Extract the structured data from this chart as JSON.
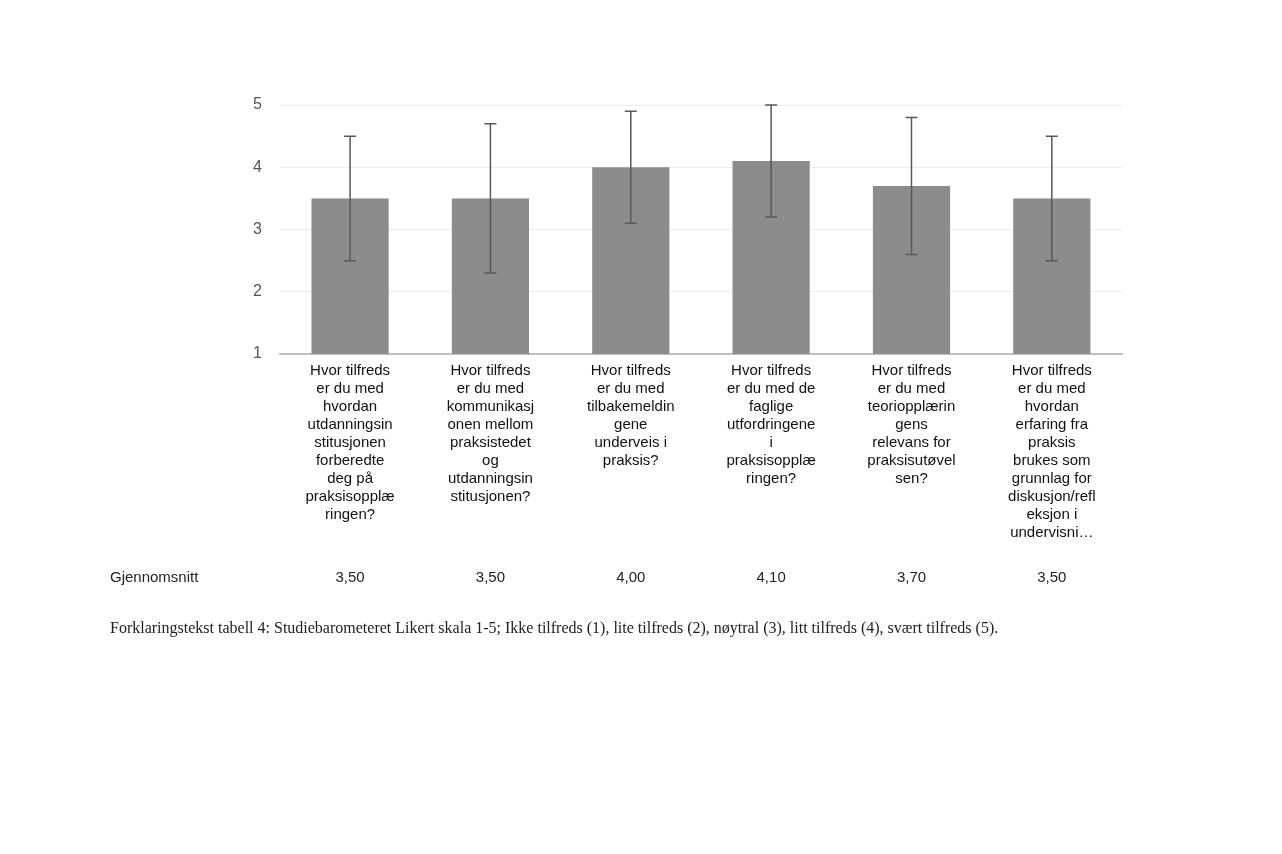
{
  "chart_data": {
    "type": "bar",
    "categories": [
      "Hvor tilfreds er du med hvordan utdanningsinstitusjonen forberedte deg på praksisopplæringen?",
      "Hvor tilfreds er du med kommunikasjonen mellom praksistedet og utdanningsinstitusjonen?",
      "Hvor tilfreds er du med tilbakemeldingene underveis i praksis?",
      "Hvor tilfreds er du med de faglige utfordringene i praksisopplæringen?",
      "Hvor tilfreds er du med teoriopplæringens relevans for praksisutøvelsen?",
      "Hvor tilfreds er du med hvordan erfaring fra praksis brukes som grunnlag for diskusjon/refleksjon i undervisni…"
    ],
    "values": [
      3.5,
      3.5,
      4.0,
      4.1,
      3.7,
      3.5
    ],
    "errors": [
      1.0,
      1.2,
      0.9,
      0.9,
      1.1,
      1.0
    ],
    "value_labels": [
      "3,50",
      "3,50",
      "4,00",
      "4,10",
      "3,70",
      "3,50"
    ],
    "color": "#8c8c8c",
    "ylim": [
      1,
      5
    ],
    "yticks": [
      1,
      2,
      3,
      4,
      5
    ],
    "grid": "y",
    "annotations": [
      "Gjennomsnitt",
      "Forklaringstekst tabell 4: Studiebarometeret Likert skala 1-5; Ikke tilfreds (1), lite tilfreds (2), nøytral (3), litt tilfreds (4), svært tilfreds (5)."
    ]
  }
}
